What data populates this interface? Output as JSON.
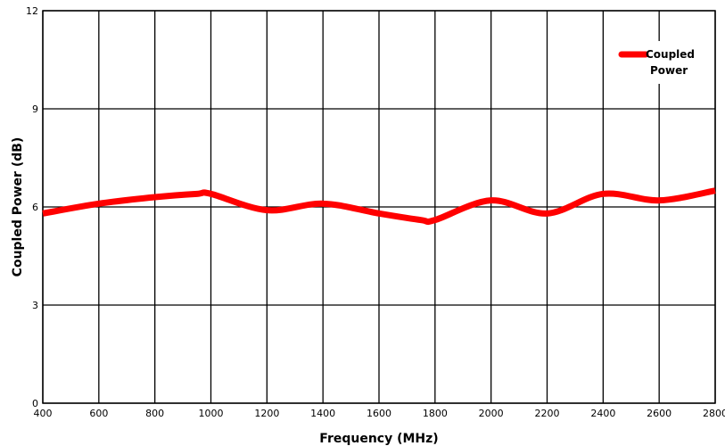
{
  "chart_data": {
    "type": "line",
    "title": "",
    "xlabel": "Frequency (MHz)",
    "ylabel": "Coupled Power (dB)",
    "xlim": [
      400,
      2800
    ],
    "ylim": [
      0,
      12
    ],
    "x_ticks": [
      "400",
      "600",
      "800",
      "1000",
      "1200",
      "1400",
      "1600",
      "1800",
      "2000",
      "2200",
      "2400",
      "2600",
      "2800"
    ],
    "y_ticks": [
      "0",
      "3",
      "6",
      "9",
      "12"
    ],
    "grid": true,
    "legend": {
      "position": "top-right",
      "entries": [
        "Coupled Power"
      ]
    },
    "series": [
      {
        "name": "Coupled Power",
        "color": "#ff0000",
        "x": [
          400,
          600,
          800,
          950,
          1000,
          1200,
          1400,
          1600,
          1750,
          1800,
          2000,
          2200,
          2400,
          2600,
          2800
        ],
        "y": [
          5.8,
          6.1,
          6.3,
          6.4,
          6.4,
          5.9,
          6.1,
          5.8,
          5.6,
          5.6,
          6.2,
          5.8,
          6.4,
          6.2,
          6.5
        ]
      }
    ]
  }
}
